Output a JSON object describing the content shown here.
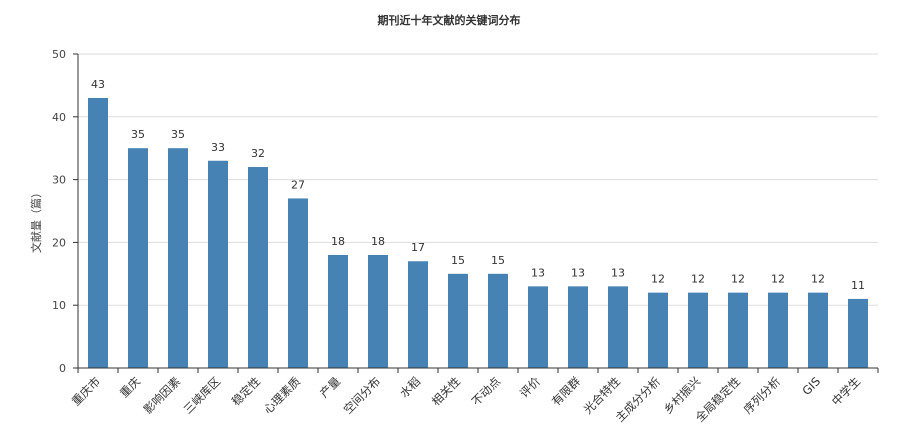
{
  "chart_data": {
    "type": "bar",
    "title": "期刊近十年文献的关键词分布",
    "xlabel": "",
    "ylabel": "文献量（篇）",
    "ylim": [
      0,
      50
    ],
    "yticks": [
      0,
      10,
      20,
      30,
      40,
      50
    ],
    "grid": true,
    "categories": [
      "重庆市",
      "重庆",
      "影响因素",
      "三峡库区",
      "稳定性",
      "心理素质",
      "产量",
      "空间分布",
      "水稻",
      "相关性",
      "不动点",
      "评价",
      "有限群",
      "光合特性",
      "主成分分析",
      "乡村振兴",
      "全局稳定性",
      "序列分析",
      "GIS",
      "中学生"
    ],
    "values": [
      43,
      35,
      35,
      33,
      32,
      27,
      18,
      18,
      17,
      15,
      15,
      13,
      13,
      13,
      12,
      12,
      12,
      12,
      12,
      11
    ],
    "colors": {
      "bar": "#4682b4",
      "grid": "#dddddd",
      "axis": "#333333"
    }
  }
}
